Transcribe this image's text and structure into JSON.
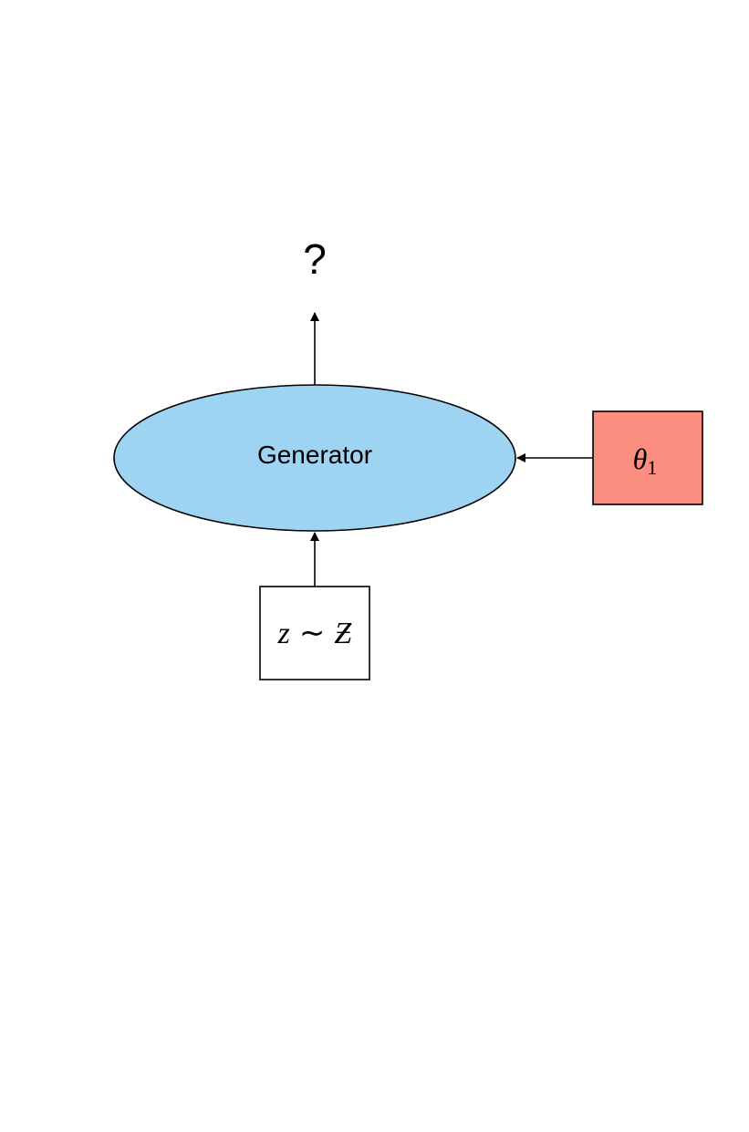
{
  "diagram": {
    "output_label": "?",
    "generator_label": "Generator",
    "param_box": {
      "symbol": "θ",
      "subscript": "1"
    },
    "noise_box": {
      "variable": "z",
      "relation": "∼",
      "distribution": "Ƶ"
    }
  },
  "colors": {
    "generator_fill": "#9fd3f2",
    "param_fill": "#fb8e80",
    "noise_fill": "#ffffff",
    "stroke": "#000000"
  }
}
